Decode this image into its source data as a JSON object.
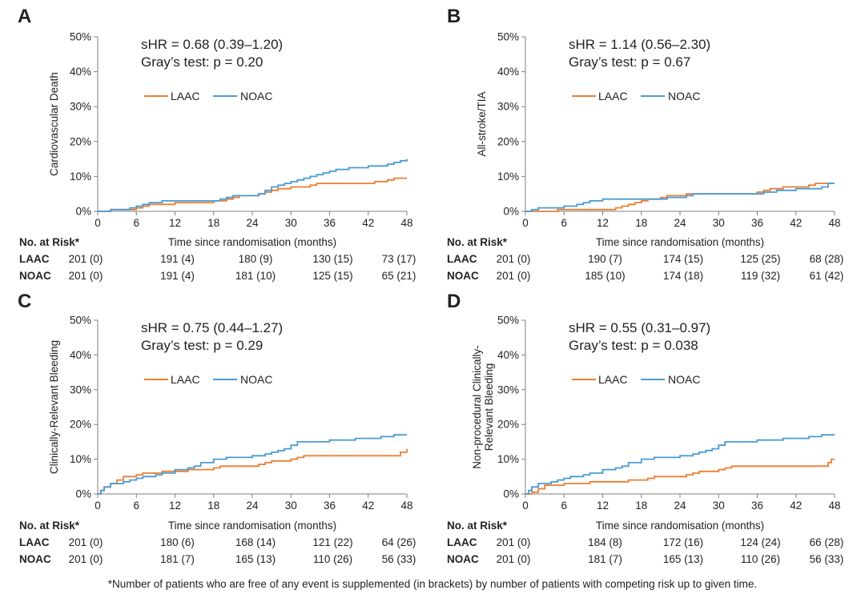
{
  "footnote": "*Number of patients who are free of any event is supplemented (in brackets) by number of patients with competing risk up to given time.",
  "colors": {
    "LAAC": "#ED7D31",
    "NOAC": "#4A9BD1",
    "axis": "#7f7f7f"
  },
  "chart_data": [
    {
      "panel": "A",
      "type": "line",
      "ylabel": "Cardiovascular  Death",
      "xlabel": "Time since randomisation  (months)",
      "stats": [
        "sHR = 0.68 (0.39–1.20)",
        "Gray’s test:  p = 0.20"
      ],
      "x_ticks": [
        0,
        6,
        12,
        18,
        24,
        30,
        36,
        42,
        48
      ],
      "y_ticks": [
        "0%",
        "10%",
        "20%",
        "30%",
        "40%",
        "50%"
      ],
      "xlim": [
        0,
        48
      ],
      "ylim": [
        0,
        50
      ],
      "legend": "top-center",
      "series": [
        {
          "name": "LAAC",
          "points": [
            [
              0,
              0
            ],
            [
              2,
              0.5
            ],
            [
              5,
              0.5
            ],
            [
              6,
              1.0
            ],
            [
              7,
              1.5
            ],
            [
              8,
              2.0
            ],
            [
              12,
              2.5
            ],
            [
              17,
              2.5
            ],
            [
              18,
              3.0
            ],
            [
              20,
              3.5
            ],
            [
              21,
              4.0
            ],
            [
              22,
              4.5
            ],
            [
              24,
              4.5
            ],
            [
              25,
              5.0
            ],
            [
              26,
              5.5
            ],
            [
              27,
              6.0
            ],
            [
              28,
              6.5
            ],
            [
              30,
              7.0
            ],
            [
              33,
              7.5
            ],
            [
              34,
              8.0
            ],
            [
              42,
              8.0
            ],
            [
              43,
              8.5
            ],
            [
              45,
              9.0
            ],
            [
              46,
              9.5
            ],
            [
              48,
              9.5
            ]
          ]
        },
        {
          "name": "NOAC",
          "points": [
            [
              0,
              0
            ],
            [
              2,
              0.5
            ],
            [
              4,
              0.5
            ],
            [
              5,
              1.0
            ],
            [
              6,
              1.5
            ],
            [
              7,
              2.0
            ],
            [
              8,
              2.5
            ],
            [
              10,
              3.0
            ],
            [
              18,
              3.0
            ],
            [
              19,
              3.5
            ],
            [
              20,
              4.0
            ],
            [
              21,
              4.5
            ],
            [
              24,
              4.5
            ],
            [
              25,
              5.0
            ],
            [
              26,
              6.0
            ],
            [
              27,
              7.0
            ],
            [
              28,
              7.5
            ],
            [
              29,
              8.0
            ],
            [
              30,
              8.5
            ],
            [
              31,
              9.0
            ],
            [
              32,
              9.5
            ],
            [
              33,
              10.0
            ],
            [
              34,
              10.5
            ],
            [
              35,
              11.0
            ],
            [
              36,
              11.5
            ],
            [
              37,
              12.0
            ],
            [
              39,
              12.5
            ],
            [
              42,
              13.0
            ],
            [
              45,
              13.5
            ],
            [
              46,
              14.0
            ],
            [
              47,
              14.5
            ],
            [
              48,
              15.0
            ]
          ]
        }
      ],
      "risk_table": {
        "header": "No. at Risk*",
        "rows": [
          {
            "label": "LAAC",
            "values": [
              "201 (0)",
              "191 (4)",
              "180 (9)",
              "130 (15)",
              "73 (17)"
            ]
          },
          {
            "label": "NOAC",
            "values": [
              "201 (0)",
              "191 (4)",
              "181 (10)",
              "125 (15)",
              "65 (21)"
            ]
          }
        ]
      }
    },
    {
      "panel": "B",
      "type": "line",
      "ylabel": "All-stroke/TIA",
      "xlabel": "Time since randomisation  (months)",
      "stats": [
        "sHR = 1.14 (0.56–2.30)",
        "Gray’s test:  p = 0.67"
      ],
      "x_ticks": [
        0,
        6,
        12,
        18,
        24,
        30,
        36,
        42,
        48
      ],
      "y_ticks": [
        "0%",
        "10%",
        "20%",
        "30%",
        "40%",
        "50%"
      ],
      "xlim": [
        0,
        48
      ],
      "ylim": [
        0,
        50
      ],
      "legend": "top-center",
      "series": [
        {
          "name": "LAAC",
          "points": [
            [
              0,
              0
            ],
            [
              5,
              0.5
            ],
            [
              13,
              0.5
            ],
            [
              14,
              1.0
            ],
            [
              15,
              1.5
            ],
            [
              16,
              2.0
            ],
            [
              17,
              2.5
            ],
            [
              18,
              3.0
            ],
            [
              19,
              3.5
            ],
            [
              21,
              4.0
            ],
            [
              22,
              4.5
            ],
            [
              25,
              5.0
            ],
            [
              35,
              5.0
            ],
            [
              36,
              5.5
            ],
            [
              37,
              6.0
            ],
            [
              38,
              6.5
            ],
            [
              40,
              7.0
            ],
            [
              44,
              7.5
            ],
            [
              45,
              8.0
            ],
            [
              48,
              8.0
            ]
          ]
        },
        {
          "name": "NOAC",
          "points": [
            [
              0,
              0
            ],
            [
              1,
              0.5
            ],
            [
              2,
              1.0
            ],
            [
              6,
              1.5
            ],
            [
              8,
              2.0
            ],
            [
              9,
              2.5
            ],
            [
              10,
              3.0
            ],
            [
              12,
              3.5
            ],
            [
              21,
              3.5
            ],
            [
              22,
              4.0
            ],
            [
              25,
              4.5
            ],
            [
              26,
              5.0
            ],
            [
              36,
              5.0
            ],
            [
              37,
              5.5
            ],
            [
              39,
              6.0
            ],
            [
              42,
              6.5
            ],
            [
              46,
              7.0
            ],
            [
              47,
              8.0
            ],
            [
              48,
              8.0
            ]
          ]
        }
      ],
      "risk_table": {
        "header": "No. at Risk*",
        "rows": [
          {
            "label": "LAAC",
            "values": [
              "201 (0)",
              "190 (7)",
              "174 (15)",
              "125 (25)",
              "68 (28)"
            ]
          },
          {
            "label": "NOAC",
            "values": [
              "201 (0)",
              "185 (10)",
              "174 (18)",
              "119 (32)",
              "61 (42)"
            ]
          }
        ]
      }
    },
    {
      "panel": "C",
      "type": "line",
      "ylabel": "Clinically-Relevant  Bleeding",
      "xlabel": "Time since randomisation  (months)",
      "stats": [
        "sHR = 0.75 (0.44–1.27)",
        "Gray’s test:  p = 0.29"
      ],
      "x_ticks": [
        0,
        6,
        12,
        18,
        24,
        30,
        36,
        42,
        48
      ],
      "y_ticks": [
        "0%",
        "10%",
        "20%",
        "30%",
        "40%",
        "50%"
      ],
      "xlim": [
        0,
        48
      ],
      "ylim": [
        0,
        50
      ],
      "legend": "top-center",
      "series": [
        {
          "name": "LAAC",
          "points": [
            [
              0,
              0
            ],
            [
              0.5,
              1.0
            ],
            [
              1,
              2.0
            ],
            [
              2,
              3.0
            ],
            [
              3,
              4.0
            ],
            [
              4,
              5.0
            ],
            [
              6,
              5.5
            ],
            [
              7,
              6.0
            ],
            [
              10,
              6.5
            ],
            [
              12,
              6.5
            ],
            [
              14,
              7.0
            ],
            [
              18,
              7.5
            ],
            [
              19,
              8.0
            ],
            [
              24,
              8.0
            ],
            [
              25,
              8.5
            ],
            [
              26,
              9.0
            ],
            [
              27,
              9.5
            ],
            [
              30,
              10.0
            ],
            [
              31,
              10.5
            ],
            [
              32,
              11.0
            ],
            [
              46,
              11.0
            ],
            [
              47,
              12.0
            ],
            [
              48,
              13.0
            ]
          ]
        },
        {
          "name": "NOAC",
          "points": [
            [
              0,
              0
            ],
            [
              0.5,
              1.0
            ],
            [
              1,
              2.0
            ],
            [
              2,
              3.0
            ],
            [
              4,
              3.5
            ],
            [
              5,
              4.0
            ],
            [
              6,
              4.5
            ],
            [
              7,
              5.0
            ],
            [
              9,
              5.5
            ],
            [
              10,
              6.0
            ],
            [
              12,
              7.0
            ],
            [
              14,
              7.5
            ],
            [
              15,
              8.0
            ],
            [
              16,
              9.0
            ],
            [
              18,
              10.0
            ],
            [
              20,
              10.5
            ],
            [
              24,
              11.0
            ],
            [
              26,
              11.5
            ],
            [
              27,
              12.0
            ],
            [
              28,
              12.5
            ],
            [
              29,
              13.0
            ],
            [
              30,
              14.0
            ],
            [
              31,
              15.0
            ],
            [
              36,
              15.5
            ],
            [
              40,
              16.0
            ],
            [
              44,
              16.5
            ],
            [
              46,
              17.0
            ],
            [
              48,
              17.0
            ]
          ]
        }
      ],
      "risk_table": {
        "header": "No. at Risk*",
        "rows": [
          {
            "label": "LAAC",
            "values": [
              "201 (0)",
              "180 (6)",
              "168 (14)",
              "121 (22)",
              "64 (26)"
            ]
          },
          {
            "label": "NOAC",
            "values": [
              "201 (0)",
              "181 (7)",
              "165 (13)",
              "110 (26)",
              "56 (33)"
            ]
          }
        ]
      }
    },
    {
      "panel": "D",
      "type": "line",
      "ylabel": "Non-procedural  Clinically-Relevant  Bleeding",
      "xlabel": "Time since randomisation  (months)",
      "stats": [
        "sHR = 0.55 (0.31–0.97)",
        "Gray’s test:  p = 0.038"
      ],
      "x_ticks": [
        0,
        6,
        12,
        18,
        24,
        30,
        36,
        42,
        48
      ],
      "y_ticks": [
        "0%",
        "10%",
        "20%",
        "30%",
        "40%",
        "50%"
      ],
      "xlim": [
        0,
        48
      ],
      "ylim": [
        0,
        50
      ],
      "legend": "top-center",
      "series": [
        {
          "name": "LAAC",
          "points": [
            [
              0,
              0
            ],
            [
              1,
              0.5
            ],
            [
              2,
              1.5
            ],
            [
              3,
              2.5
            ],
            [
              6,
              3.0
            ],
            [
              10,
              3.5
            ],
            [
              16,
              4.0
            ],
            [
              19,
              4.5
            ],
            [
              20,
              5.0
            ],
            [
              24,
              5.0
            ],
            [
              25,
              5.5
            ],
            [
              26,
              6.0
            ],
            [
              27,
              6.5
            ],
            [
              30,
              7.0
            ],
            [
              31,
              7.5
            ],
            [
              32,
              8.0
            ],
            [
              46,
              8.0
            ],
            [
              47,
              9.0
            ],
            [
              47.5,
              10.0
            ],
            [
              48,
              10.0
            ]
          ]
        },
        {
          "name": "NOAC",
          "points": [
            [
              0,
              0
            ],
            [
              0.5,
              1.0
            ],
            [
              1,
              2.0
            ],
            [
              2,
              3.0
            ],
            [
              4,
              3.5
            ],
            [
              5,
              4.0
            ],
            [
              6,
              4.5
            ],
            [
              7,
              5.0
            ],
            [
              9,
              5.5
            ],
            [
              10,
              6.0
            ],
            [
              12,
              7.0
            ],
            [
              14,
              7.5
            ],
            [
              15,
              8.0
            ],
            [
              16,
              9.0
            ],
            [
              18,
              10.0
            ],
            [
              20,
              10.5
            ],
            [
              24,
              11.0
            ],
            [
              26,
              11.5
            ],
            [
              27,
              12.0
            ],
            [
              28,
              12.5
            ],
            [
              29,
              13.0
            ],
            [
              30,
              14.0
            ],
            [
              31,
              15.0
            ],
            [
              36,
              15.5
            ],
            [
              40,
              16.0
            ],
            [
              44,
              16.5
            ],
            [
              46,
              17.0
            ],
            [
              48,
              17.0
            ]
          ]
        }
      ],
      "risk_table": {
        "header": "No. at Risk*",
        "rows": [
          {
            "label": "LAAC",
            "values": [
              "201 (0)",
              "184 (8)",
              "172 (16)",
              "124 (24)",
              "66 (28)"
            ]
          },
          {
            "label": "NOAC",
            "values": [
              "201 (0)",
              "181 (7)",
              "165 (13)",
              "110 (26)",
              "56 (33)"
            ]
          }
        ]
      }
    }
  ]
}
